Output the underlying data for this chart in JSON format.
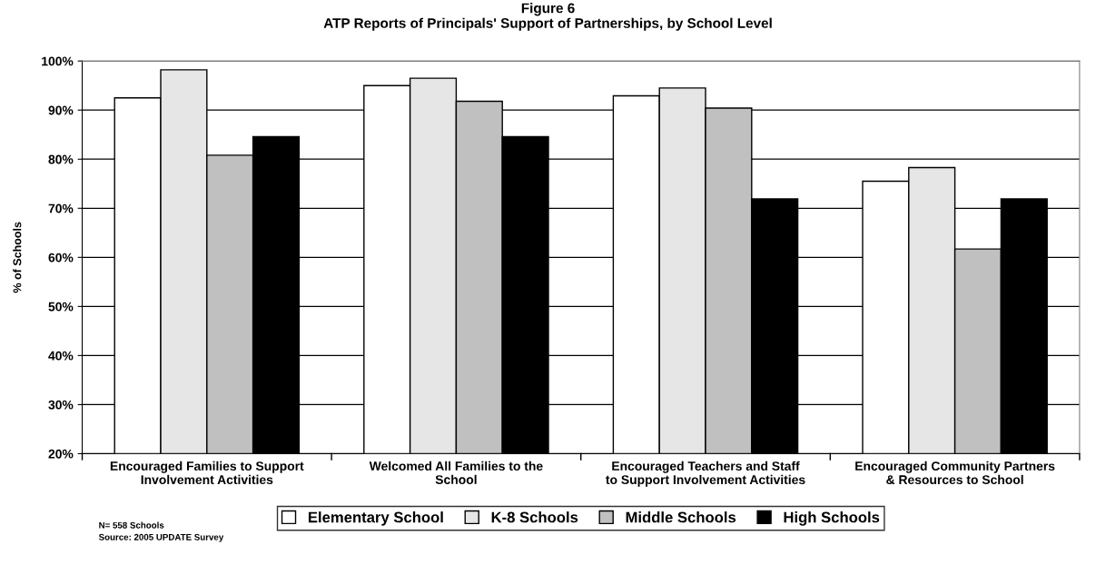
{
  "chart_data": {
    "type": "bar",
    "title": "Figure 6\nATP Reports of Principals' Support of Partnerships, by School Level",
    "ylabel": "% of Schools",
    "categories": [
      "Encouraged Families to Support\nInvolvement Activities",
      "Welcomed All Families to the\nSchool",
      "Encouraged Teachers and Staff\nto Support Involvement Activities",
      "Encouraged Community Partners\n& Resources to School"
    ],
    "series": [
      {
        "name": "Elementary School",
        "color": "#ffffff",
        "values": [
          92.5,
          95.0,
          92.9,
          75.5
        ]
      },
      {
        "name": "K-8 Schools",
        "color": "#e6e6e6",
        "values": [
          98.2,
          96.5,
          94.5,
          78.3
        ]
      },
      {
        "name": "Middle Schools",
        "color": "#c0c0c0",
        "values": [
          80.8,
          91.8,
          90.4,
          61.7
        ]
      },
      {
        "name": "High Schools",
        "color": "#000000",
        "values": [
          84.6,
          84.6,
          71.9,
          71.9
        ]
      }
    ],
    "ylim": [
      20,
      100
    ],
    "yticks": [
      {
        "value": 20,
        "label": "20%"
      },
      {
        "value": 30,
        "label": "30%"
      },
      {
        "value": 40,
        "label": "40%"
      },
      {
        "value": 50,
        "label": "50%"
      },
      {
        "value": 60,
        "label": "60%"
      },
      {
        "value": 70,
        "label": "70%"
      },
      {
        "value": 80,
        "label": "80%"
      },
      {
        "value": 90,
        "label": "90%"
      },
      {
        "value": 100,
        "label": "100%"
      }
    ],
    "grid": "y",
    "legend": "bottom",
    "annotations": [
      "N= 558 Schools",
      "Source: 2005 UPDATE Survey"
    ]
  }
}
